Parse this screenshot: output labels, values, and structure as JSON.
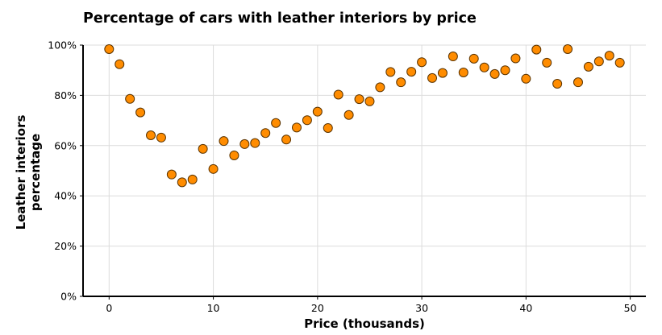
{
  "chart_data": {
    "type": "scatter",
    "title": "Percentage of cars with leather interiors by price",
    "xlabel": "Price (thousands)",
    "ylabel_lines": [
      "Leather interiors",
      "percentage"
    ],
    "xlim": [
      -2.5,
      51.5
    ],
    "ylim": [
      0,
      100
    ],
    "xticks": [
      0,
      10,
      20,
      30,
      40,
      50
    ],
    "xtick_labels": [
      "0",
      "10",
      "20",
      "30",
      "40",
      "50"
    ],
    "yticks": [
      0,
      20,
      40,
      60,
      80,
      100
    ],
    "ytick_labels": [
      "0%",
      "20%",
      "40%",
      "60%",
      "80%",
      "100%"
    ],
    "grid": true,
    "marker_color": "#ff8c00",
    "marker_edge_color": "#5a3300",
    "x": [
      0,
      1,
      2,
      3,
      4,
      5,
      6,
      7,
      8,
      9,
      10,
      11,
      12,
      13,
      14,
      15,
      16,
      17,
      18,
      19,
      20,
      21,
      22,
      23,
      24,
      25,
      26,
      27,
      28,
      29,
      30,
      31,
      32,
      33,
      34,
      35,
      36,
      37,
      38,
      39,
      40,
      41,
      42,
      43,
      44,
      45,
      46,
      47,
      48,
      49
    ],
    "y": [
      98.4,
      92.4,
      78.6,
      73.2,
      64.1,
      63.2,
      48.5,
      45.4,
      46.5,
      58.7,
      50.7,
      61.8,
      56.1,
      60.6,
      61.0,
      65.0,
      69.0,
      62.4,
      67.2,
      70.1,
      73.5,
      67.0,
      80.3,
      72.2,
      78.5,
      77.6,
      83.2,
      89.3,
      85.2,
      89.4,
      93.2,
      86.9,
      88.9,
      95.5,
      89.1,
      94.6,
      91.1,
      88.5,
      90.0,
      94.7,
      86.6,
      98.2,
      93.0,
      84.6,
      98.4,
      85.2,
      91.4,
      93.5,
      95.8,
      93.0
    ]
  }
}
